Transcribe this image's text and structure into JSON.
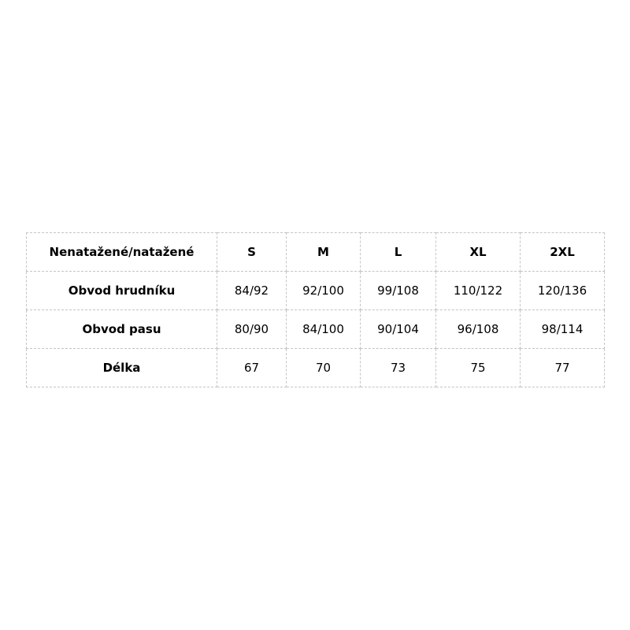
{
  "chart_data": {
    "type": "table",
    "title": "",
    "columns": [
      "Nenatažené/natažené",
      "S",
      "M",
      "L",
      "XL",
      "2XL"
    ],
    "rows": [
      {
        "label": "Obvod hrudníku",
        "values": [
          "84/92",
          "92/100",
          "99/108",
          "110/122",
          "120/136"
        ]
      },
      {
        "label": "Obvod pasu",
        "values": [
          "80/90",
          "84/100",
          "90/104",
          "96/108",
          "98/114"
        ]
      },
      {
        "label": "Délka",
        "values": [
          "67",
          "70",
          "73",
          "75",
          "77"
        ]
      }
    ],
    "layout": {
      "border_style": "dashed",
      "border_color": "#c4c4c4",
      "text_color": "#000000",
      "background_color": "#ffffff",
      "header_bold": true,
      "first_column_bold": true
    }
  }
}
